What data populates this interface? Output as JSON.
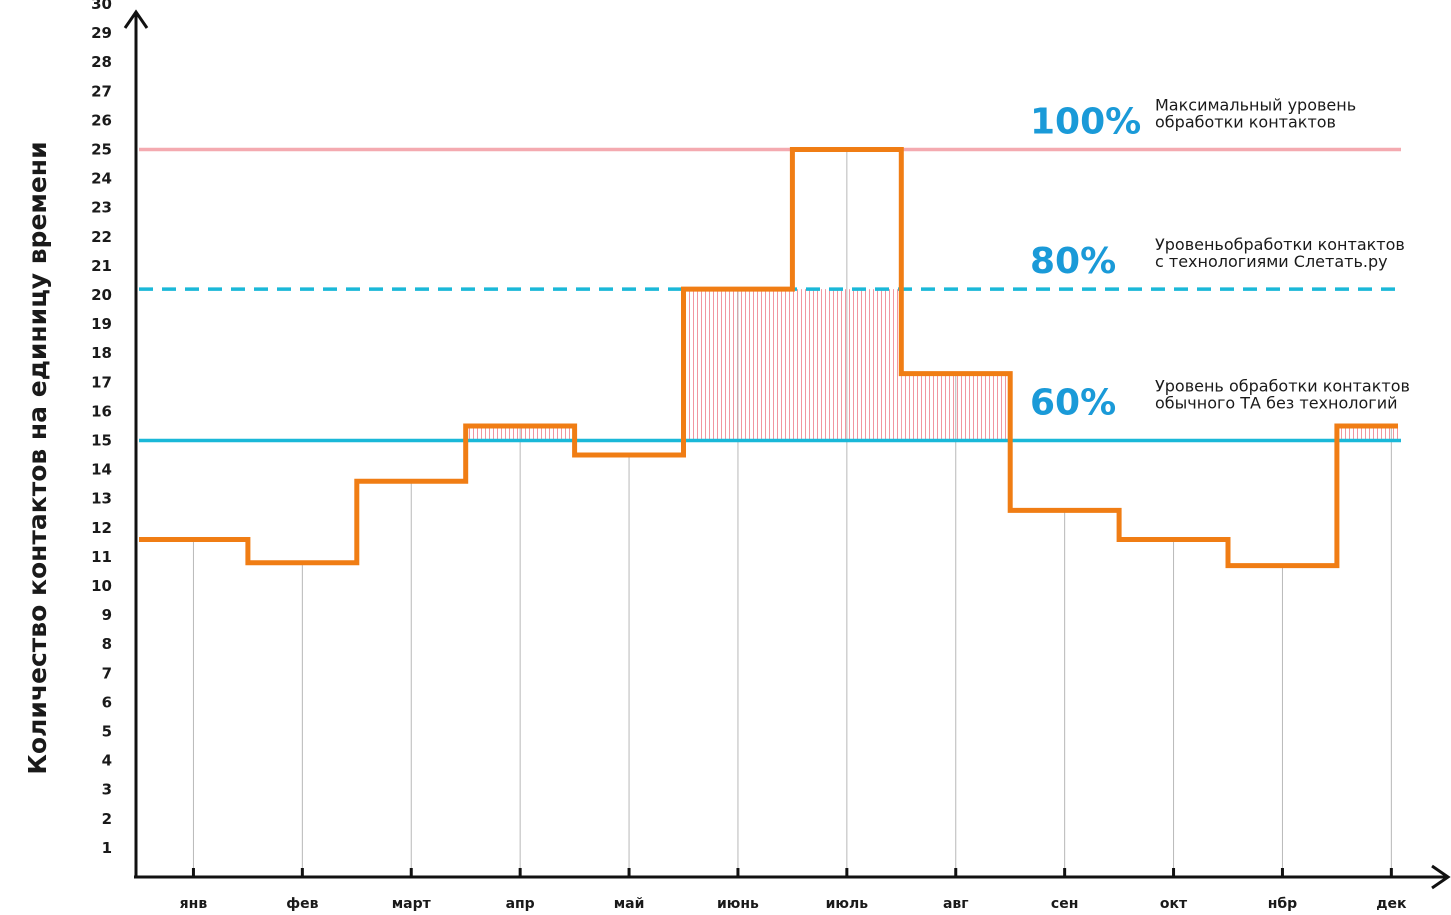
{
  "chart_data": {
    "type": "line",
    "ylabel": "Количество контактов на единицу времени",
    "xlabel": "",
    "ylim": [
      0,
      30
    ],
    "y_ticks": [
      "1",
      "2",
      "3",
      "4",
      "5",
      "6",
      "7",
      "8",
      "9",
      "10",
      "11",
      "12",
      "13",
      "14",
      "15",
      "16",
      "17",
      "18",
      "19",
      "20",
      "21",
      "22",
      "23",
      "24",
      "25",
      "26",
      "27",
      "28",
      "29",
      "30"
    ],
    "categories": [
      "янв",
      "фев",
      "март",
      "апр",
      "май",
      "июнь",
      "июль",
      "авг",
      "сен",
      "окт",
      "нбр",
      "дек"
    ],
    "series": [
      {
        "name": "",
        "style": "step",
        "color": "#f07d14",
        "values": [
          11.6,
          10.8,
          13.6,
          15.5,
          14.5,
          20.2,
          25.0,
          17.3,
          12.6,
          11.6,
          10.7,
          15.5
        ]
      }
    ],
    "reference_lines": [
      {
        "value": 25,
        "color": "#f4aab0",
        "style": "solid",
        "percent": "100%",
        "percent_color": "#1a9ad8",
        "label_line1": "Максимальный уровень",
        "label_line2": "обработки контактов"
      },
      {
        "value": 20.2,
        "color": "#1ab8d8",
        "style": "dashed",
        "percent": "80%",
        "percent_color": "#1a9ad8",
        "label_line1": "Уровеньобработки контактов",
        "label_line2": "с технологиями Слетать.ру"
      },
      {
        "value": 15,
        "color": "#1ab8d8",
        "style": "solid",
        "percent": "60%",
        "percent_color": "#1a9ad8",
        "label_line1": "Уровень обработки контактов",
        "label_line2": "обычного ТА без технологий"
      }
    ],
    "hatch_color": "#f08a96",
    "grid": "vertical",
    "legend": "none"
  }
}
